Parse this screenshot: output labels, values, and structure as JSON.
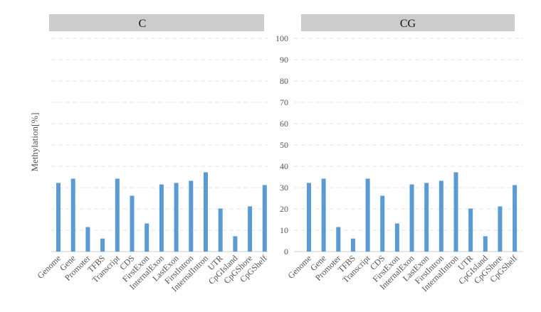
{
  "chart_data": [
    {
      "type": "bar",
      "title": "C",
      "ylabel": "Methylation[%]",
      "ylim": [
        0,
        100
      ],
      "yticks": [
        "0",
        "10",
        "20",
        "30",
        "40",
        "50",
        "60",
        "70",
        "80",
        "90",
        "100"
      ],
      "grid": true,
      "categories": [
        "Genome",
        "Gene",
        "Promoter",
        "TFBS",
        "Transcript",
        "CDS",
        "FirstExon",
        "InternalExon",
        "LastExon",
        "FirstIntron",
        "InternalIntron",
        "UTR",
        "CpGIsland",
        "CpGShore",
        "CpGShelf"
      ],
      "values": [
        32.2,
        34.2,
        11.5,
        6.1,
        34.2,
        26.2,
        13.2,
        31.5,
        32.2,
        33.2,
        37.2,
        20.2,
        7.2,
        21.2,
        31.2
      ],
      "color": "#5b9bd5"
    },
    {
      "type": "bar",
      "title": "CG",
      "ylim": [
        0,
        100
      ],
      "grid": true,
      "categories": [
        "Genome",
        "Gene",
        "Promoter",
        "TFBS",
        "Transcript",
        "CDS",
        "FirstExon",
        "InternalExon",
        "LastExon",
        "FirstIntron",
        "InternalIntron",
        "UTR",
        "CpGIsland",
        "CpGShore",
        "CpGShelf"
      ],
      "values": [
        32.2,
        34.2,
        11.5,
        6.1,
        34.2,
        26.2,
        13.2,
        31.5,
        32.2,
        33.2,
        37.2,
        20.2,
        7.2,
        21.2,
        31.2
      ],
      "color": "#5b9bd5"
    }
  ]
}
